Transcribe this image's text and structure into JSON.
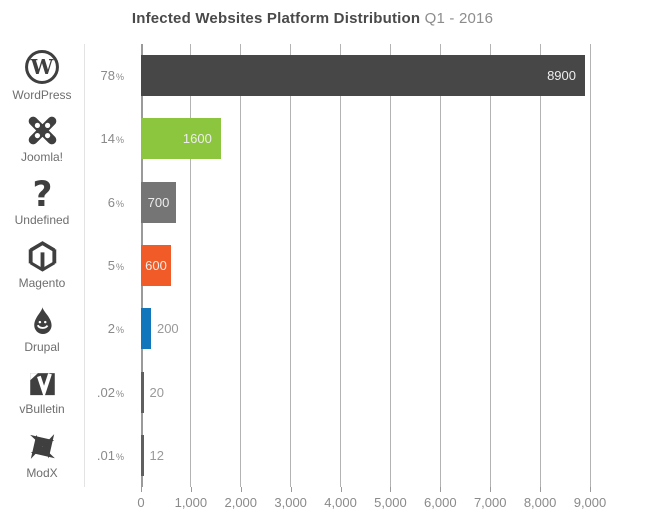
{
  "title": {
    "main": "Infected Websites Platform Distribution",
    "suffix": "Q1 - 2016"
  },
  "percent_sign": "%",
  "icons": [
    "wordpress-icon",
    "joomla-icon",
    "question-mark-icon",
    "magento-icon",
    "drupal-icon",
    "vbulletin-icon",
    "modx-icon"
  ],
  "chart_data": {
    "type": "bar",
    "orientation": "horizontal",
    "title": "Infected Websites Platform Distribution Q1 - 2016",
    "categories": [
      "WordPress",
      "Joomla!",
      "Undefined",
      "Magento",
      "Drupal",
      "vBulletin",
      "ModX"
    ],
    "values": [
      8900,
      1600,
      700,
      600,
      200,
      20,
      12
    ],
    "percents": [
      "78",
      "14",
      "6",
      "5",
      "2",
      ".02",
      ".01"
    ],
    "bar_colors": [
      "#474747",
      "#8cc63f",
      "#757575",
      "#f05b28",
      "#1276bc",
      "#5f5f5f",
      "#5f5f5f"
    ],
    "xlim": [
      0,
      9000
    ],
    "x_ticks": [
      "0",
      "1,000",
      "2,000",
      "3,000",
      "4,000",
      "5,000",
      "6,000",
      "7,000",
      "8,000",
      "9,000"
    ],
    "grid": true,
    "legend": false,
    "colors": {
      "grid": "#b3b3b3",
      "axis": "#9a9a9a",
      "inside_label": "#ededed",
      "outside_label": "#999999",
      "icon": "#3f3f3f"
    }
  }
}
